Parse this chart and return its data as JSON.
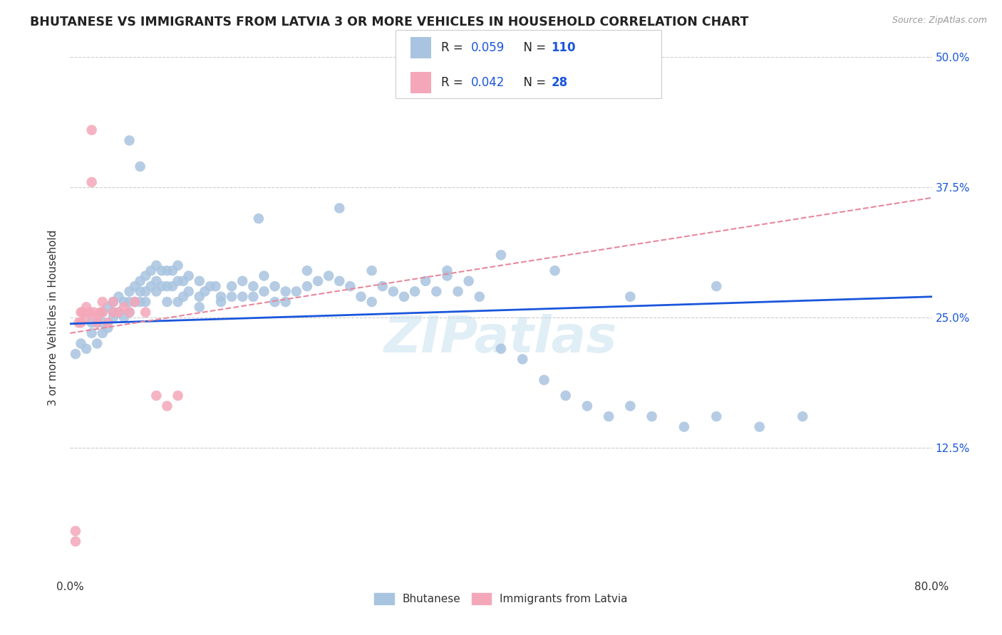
{
  "title": "BHUTANESE VS IMMIGRANTS FROM LATVIA 3 OR MORE VEHICLES IN HOUSEHOLD CORRELATION CHART",
  "source": "Source: ZipAtlas.com",
  "ylabel": "3 or more Vehicles in Household",
  "xlim": [
    0.0,
    0.8
  ],
  "ylim": [
    0.0,
    0.5
  ],
  "xticks": [
    0.0,
    0.2,
    0.4,
    0.6,
    0.8
  ],
  "xtick_labels": [
    "0.0%",
    "",
    "",
    "",
    "80.0%"
  ],
  "yticks": [
    0.0,
    0.125,
    0.25,
    0.375,
    0.5
  ],
  "ytick_labels": [
    "",
    "12.5%",
    "25.0%",
    "37.5%",
    "50.0%"
  ],
  "watermark": "ZIPatlas",
  "blue_R": 0.059,
  "blue_N": 110,
  "pink_R": 0.042,
  "pink_N": 28,
  "blue_color": "#a8c4e0",
  "pink_color": "#f4a7b9",
  "blue_line_color": "#1a56db",
  "pink_line_color": "#e8879c",
  "legend_label_blue": "Bhutanese",
  "legend_label_pink": "Immigrants from Latvia",
  "blue_scatter_x": [
    0.005,
    0.01,
    0.015,
    0.02,
    0.02,
    0.025,
    0.025,
    0.03,
    0.03,
    0.03,
    0.035,
    0.035,
    0.04,
    0.04,
    0.04,
    0.045,
    0.045,
    0.05,
    0.05,
    0.055,
    0.055,
    0.055,
    0.06,
    0.06,
    0.065,
    0.065,
    0.065,
    0.07,
    0.07,
    0.07,
    0.075,
    0.075,
    0.08,
    0.08,
    0.08,
    0.085,
    0.085,
    0.09,
    0.09,
    0.09,
    0.095,
    0.095,
    0.1,
    0.1,
    0.1,
    0.105,
    0.105,
    0.11,
    0.11,
    0.12,
    0.12,
    0.12,
    0.125,
    0.13,
    0.135,
    0.14,
    0.14,
    0.15,
    0.15,
    0.16,
    0.16,
    0.17,
    0.17,
    0.18,
    0.18,
    0.19,
    0.19,
    0.2,
    0.2,
    0.21,
    0.22,
    0.22,
    0.23,
    0.24,
    0.25,
    0.26,
    0.27,
    0.28,
    0.29,
    0.3,
    0.31,
    0.32,
    0.33,
    0.34,
    0.35,
    0.36,
    0.37,
    0.38,
    0.4,
    0.42,
    0.44,
    0.46,
    0.48,
    0.5,
    0.52,
    0.54,
    0.57,
    0.6,
    0.64,
    0.68,
    0.055,
    0.065,
    0.175,
    0.25,
    0.28,
    0.35,
    0.4,
    0.45,
    0.52,
    0.6
  ],
  "blue_scatter_y": [
    0.215,
    0.225,
    0.22,
    0.235,
    0.245,
    0.225,
    0.245,
    0.235,
    0.245,
    0.255,
    0.26,
    0.24,
    0.255,
    0.265,
    0.25,
    0.27,
    0.255,
    0.265,
    0.25,
    0.275,
    0.265,
    0.255,
    0.28,
    0.265,
    0.285,
    0.275,
    0.265,
    0.29,
    0.275,
    0.265,
    0.295,
    0.28,
    0.3,
    0.285,
    0.275,
    0.295,
    0.28,
    0.295,
    0.28,
    0.265,
    0.295,
    0.28,
    0.3,
    0.285,
    0.265,
    0.285,
    0.27,
    0.29,
    0.275,
    0.285,
    0.27,
    0.26,
    0.275,
    0.28,
    0.28,
    0.27,
    0.265,
    0.28,
    0.27,
    0.285,
    0.27,
    0.28,
    0.27,
    0.29,
    0.275,
    0.28,
    0.265,
    0.275,
    0.265,
    0.275,
    0.295,
    0.28,
    0.285,
    0.29,
    0.285,
    0.28,
    0.27,
    0.265,
    0.28,
    0.275,
    0.27,
    0.275,
    0.285,
    0.275,
    0.29,
    0.275,
    0.285,
    0.27,
    0.22,
    0.21,
    0.19,
    0.175,
    0.165,
    0.155,
    0.165,
    0.155,
    0.145,
    0.155,
    0.145,
    0.155,
    0.42,
    0.395,
    0.345,
    0.355,
    0.295,
    0.295,
    0.31,
    0.295,
    0.27,
    0.28
  ],
  "pink_scatter_x": [
    0.005,
    0.005,
    0.008,
    0.01,
    0.01,
    0.012,
    0.015,
    0.015,
    0.018,
    0.02,
    0.02,
    0.022,
    0.025,
    0.025,
    0.028,
    0.03,
    0.03,
    0.035,
    0.04,
    0.04,
    0.045,
    0.05,
    0.055,
    0.06,
    0.07,
    0.08,
    0.09,
    0.1
  ],
  "pink_scatter_y": [
    0.045,
    0.035,
    0.245,
    0.255,
    0.245,
    0.255,
    0.26,
    0.25,
    0.255,
    0.43,
    0.38,
    0.255,
    0.25,
    0.245,
    0.255,
    0.265,
    0.255,
    0.245,
    0.265,
    0.255,
    0.255,
    0.26,
    0.255,
    0.265,
    0.255,
    0.175,
    0.165,
    0.175
  ]
}
